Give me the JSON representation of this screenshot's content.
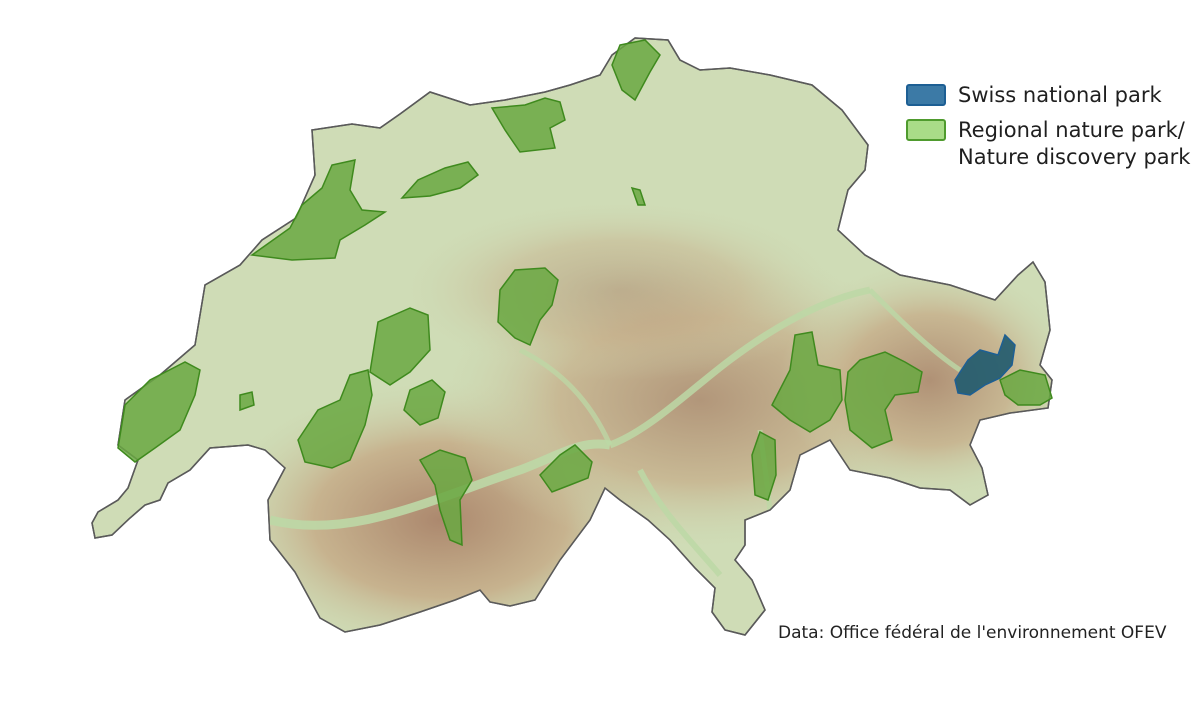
{
  "legend": {
    "items": [
      {
        "label": "Swiss national park",
        "fill": "#3c7aa6",
        "stroke": "#1d5f94"
      },
      {
        "label": "Regional nature park/\nNature discovery park",
        "fill": "#a9dc88",
        "stroke": "#4f9b2e"
      }
    ]
  },
  "source_note": "Data: Office fédéral de l'environnement OFEV",
  "colors": {
    "plateau": "#cfdcb6",
    "alps_mid": "#c7b68f",
    "alps_high": "#a8806a",
    "valley": "#b7d3a0",
    "border": "#555555",
    "regional_park_fill": "#6aa842",
    "regional_park_stroke": "#3f8a1e",
    "national_park_fill": "#1f5a6e",
    "national_park_stroke": "#1d5f94"
  }
}
